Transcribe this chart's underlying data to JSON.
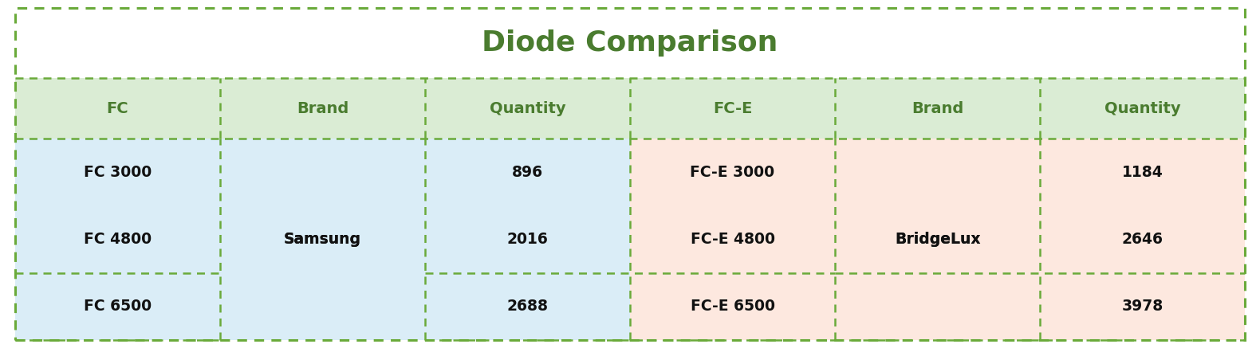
{
  "title": "Diode Comparison",
  "title_color": "#4a7c2f",
  "title_fontsize": 26,
  "header_bg_color": "#daecd4",
  "header_text_color": "#4a7c2f",
  "fc_data_bg_color": "#daedf7",
  "fce_data_bg_color": "#fde8df",
  "data_text_color": "#111111",
  "border_color": "#6aaa3a",
  "columns": [
    "FC",
    "Brand",
    "Quantity",
    "FC-E",
    "Brand",
    "Quantity"
  ],
  "fc_rows": [
    [
      "FC 3000",
      "",
      "896"
    ],
    [
      "FC 4800",
      "Samsung",
      "2016"
    ],
    [
      "FC 6500",
      "",
      "2688"
    ]
  ],
  "fce_rows": [
    [
      "FC-E 3000",
      "",
      "1184"
    ],
    [
      "FC-E 4800",
      "BridgeLux",
      "2646"
    ],
    [
      "FC-E 6500",
      "",
      "3978"
    ]
  ],
  "figsize": [
    15.8,
    4.32
  ],
  "dpi": 100
}
